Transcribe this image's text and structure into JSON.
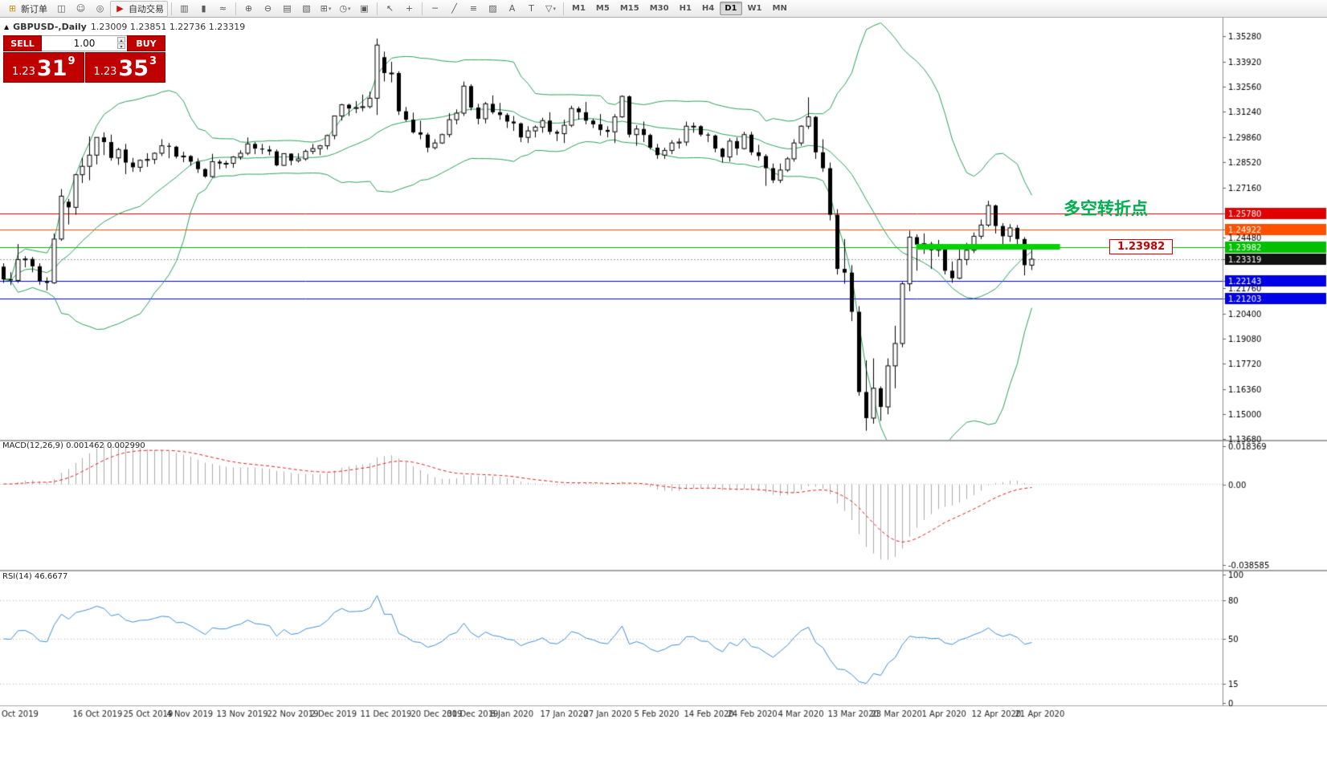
{
  "toolbar": {
    "new_order_label": "新订单",
    "autotrading_label": "自动交易",
    "timeframes": [
      "M1",
      "M5",
      "M15",
      "M30",
      "H1",
      "H4",
      "D1",
      "W1",
      "MN"
    ],
    "active_timeframe": "D1",
    "icons": {
      "new_order": "⊞",
      "terminal": "◫",
      "profiles": "☺",
      "data_window": "◎",
      "autotrade": "▶",
      "bars": "▥",
      "candles": "▮",
      "line_chart": "≈",
      "zoom_in": "⊕",
      "zoom_out": "⊖",
      "tile": "▤",
      "cascade": "▧",
      "new_chart": "⊞",
      "clock": "◷",
      "export": "▣",
      "cursor": "↖",
      "crosshair": "+",
      "hline": "─",
      "trendline": "╱",
      "fibo": "≡",
      "shapes": "▨",
      "text": "A",
      "label": "T",
      "arrows": "▽",
      "caret": "▾"
    }
  },
  "chart_header": {
    "collapse_icon": "▲",
    "symbol": "GBPUSD-,Daily",
    "ohlc": "1.23009 1.23851 1.22736 1.23319"
  },
  "trade_panel": {
    "sell_label": "SELL",
    "buy_label": "BUY",
    "volume": "1.00",
    "spinner_up": "▴",
    "spinner_down": "▾",
    "sell_price": {
      "prefix": "1.23",
      "big": "31",
      "sup": "9"
    },
    "buy_price": {
      "prefix": "1.23",
      "big": "35",
      "sup": "3"
    }
  },
  "annotations": {
    "turning_point": "多空转折点",
    "price_tag": "1.23982"
  },
  "indicators": {
    "macd_label": "MACD(12,26,9) 0.001462 0.002990",
    "rsi_label": "RSI(14) 46.6677"
  },
  "chart_data": {
    "type": "candlestick",
    "symbol": "GBPUSD",
    "timeframe": "Daily",
    "current_price": 1.23319,
    "bollinger": {
      "period": 20,
      "deviation": 2
    },
    "hlines": [
      [
        1.2578,
        "#dd0000"
      ],
      [
        1.24922,
        "#ff5000"
      ],
      [
        1.23982,
        "#00b000"
      ],
      [
        1.22143,
        "#0000f0"
      ],
      [
        1.21203,
        "#0000f0"
      ]
    ],
    "thick_line": {
      "price": 1.2398,
      "from": 127,
      "to": 147,
      "color": "#00d300",
      "width": 7
    },
    "price_axis": [
      [
        1.3528,
        "1.35280",
        null
      ],
      [
        1.3392,
        "1.33920",
        null
      ],
      [
        1.3256,
        "1.32560",
        null
      ],
      [
        1.3124,
        "1.31240",
        null
      ],
      [
        1.2986,
        "1.29860",
        null
      ],
      [
        1.2852,
        "1.28520",
        null
      ],
      [
        1.2716,
        "1.27160",
        null
      ],
      [
        1.2578,
        "1.25780",
        "#e10000"
      ],
      [
        1.24922,
        "1.24922",
        "#ff5000"
      ],
      [
        1.2448,
        "1.24480",
        null
      ],
      [
        1.23982,
        "1.23982",
        "#00c000"
      ],
      [
        1.23319,
        "1.23319",
        "#111111"
      ],
      [
        1.22143,
        "1.22143",
        "#0000e6"
      ],
      [
        1.2176,
        "1.21760",
        null
      ],
      [
        1.21203,
        "1.21203",
        "#0000e6"
      ],
      [
        1.204,
        "1.20400",
        null
      ],
      [
        1.1908,
        "1.19080",
        null
      ],
      [
        1.1772,
        "1.17720",
        null
      ],
      [
        1.1636,
        "1.16360",
        null
      ],
      [
        1.15,
        "1.15000",
        null
      ],
      [
        1.1368,
        "1.13680",
        null
      ]
    ],
    "macd": {
      "params": [
        12,
        26,
        9
      ],
      "values": [
        0.001462,
        0.00299
      ],
      "vmax": 0.018369,
      "vmin": -0.038585,
      "axis": [
        "0.018369",
        "0.00",
        "-0.038585"
      ]
    },
    "rsi": {
      "period": 14,
      "value": 46.6677,
      "levels": [
        80,
        50,
        15
      ],
      "axis": [
        [
          "100",
          100
        ],
        [
          "80",
          80
        ],
        [
          "50",
          50
        ],
        [
          "15",
          15
        ],
        [
          "0",
          0
        ]
      ]
    },
    "x_labels": [
      [
        0,
        "Oct 2019"
      ],
      [
        11,
        "16 Oct 2019"
      ],
      [
        18,
        "25 Oct 2019"
      ],
      [
        24,
        "4 Nov 2019"
      ],
      [
        31,
        "13 Nov 2019"
      ],
      [
        38,
        "22 Nov 2019"
      ],
      [
        44,
        "2 Dec 2019"
      ],
      [
        51,
        "11 Dec 2019"
      ],
      [
        58,
        "20 Dec 2019"
      ],
      [
        63,
        "30 Dec 2019"
      ],
      [
        69,
        "8 Jan 2020"
      ],
      [
        76,
        "17 Jan 2020"
      ],
      [
        82,
        "27 Jan 2020"
      ],
      [
        89,
        "5 Feb 2020"
      ],
      [
        96,
        "14 Feb 2020"
      ],
      [
        102,
        "24 Feb 2020"
      ],
      [
        109,
        "4 Mar 2020"
      ],
      [
        116,
        "13 Mar 2020"
      ],
      [
        122,
        "23 Mar 2020"
      ],
      [
        129,
        "1 Apr 2020"
      ],
      [
        136,
        "12 Apr 2020"
      ],
      [
        142,
        "21 Apr 2020"
      ]
    ],
    "candles": [
      [
        1.2292,
        1.231,
        1.2205,
        1.2224
      ],
      [
        1.2224,
        1.2262,
        1.2193,
        1.2218
      ],
      [
        1.2218,
        1.2413,
        1.2205,
        1.233
      ],
      [
        1.233,
        1.2348,
        1.2288,
        1.2333
      ],
      [
        1.2333,
        1.2344,
        1.2262,
        1.2294
      ],
      [
        1.2294,
        1.231,
        1.2195,
        1.2215
      ],
      [
        1.2215,
        1.2235,
        1.2165,
        1.2205
      ],
      [
        1.2205,
        1.247,
        1.22,
        1.244
      ],
      [
        1.244,
        1.2708,
        1.243,
        1.267
      ],
      [
        1.264,
        1.2655,
        1.2518,
        1.261
      ],
      [
        1.261,
        1.279,
        1.257,
        1.2785
      ],
      [
        1.2785,
        1.2877,
        1.274,
        1.283
      ],
      [
        1.283,
        1.299,
        1.2755,
        1.289
      ],
      [
        1.289,
        1.2985,
        1.284,
        1.2985
      ],
      [
        1.2985,
        1.3012,
        1.289,
        1.296
      ],
      [
        1.296,
        1.3,
        1.286,
        1.2875
      ],
      [
        1.2875,
        1.293,
        1.2838,
        1.292
      ],
      [
        1.292,
        1.295,
        1.2788,
        1.285
      ],
      [
        1.285,
        1.2875,
        1.28,
        1.2825
      ],
      [
        1.2825,
        1.2867,
        1.28,
        1.2862
      ],
      [
        1.2862,
        1.29,
        1.2827,
        1.2867
      ],
      [
        1.2867,
        1.2905,
        1.2842,
        1.29
      ],
      [
        1.29,
        1.2975,
        1.2885,
        1.294
      ],
      [
        1.294,
        1.2955,
        1.2873,
        1.2935
      ],
      [
        1.2935,
        1.294,
        1.2872,
        1.2882
      ],
      [
        1.2882,
        1.2908,
        1.2852,
        1.2885
      ],
      [
        1.2885,
        1.289,
        1.2833,
        1.2855
      ],
      [
        1.2855,
        1.2873,
        1.2794,
        1.2815
      ],
      [
        1.2815,
        1.282,
        1.2768,
        1.2775
      ],
      [
        1.2775,
        1.2897,
        1.2769,
        1.2855
      ],
      [
        1.2855,
        1.2865,
        1.2815,
        1.2845
      ],
      [
        1.2845,
        1.286,
        1.282,
        1.2846
      ],
      [
        1.2846,
        1.2885,
        1.2822,
        1.288
      ],
      [
        1.288,
        1.2916,
        1.2865,
        1.29
      ],
      [
        1.29,
        1.2985,
        1.289,
        1.295
      ],
      [
        1.295,
        1.296,
        1.2895,
        1.2925
      ],
      [
        1.2925,
        1.295,
        1.2895,
        1.292
      ],
      [
        1.292,
        1.294,
        1.289,
        1.291
      ],
      [
        1.291,
        1.292,
        1.283,
        1.2835
      ],
      [
        1.2835,
        1.29,
        1.2832,
        1.2898
      ],
      [
        1.2898,
        1.29,
        1.2835,
        1.286
      ],
      [
        1.286,
        1.29,
        1.285,
        1.287
      ],
      [
        1.287,
        1.292,
        1.286,
        1.291
      ],
      [
        1.291,
        1.295,
        1.2895,
        1.2925
      ],
      [
        1.2925,
        1.2945,
        1.289,
        1.294
      ],
      [
        1.294,
        1.3,
        1.292,
        1.2995
      ],
      [
        1.2995,
        1.3102,
        1.2975,
        1.31
      ],
      [
        1.31,
        1.3165,
        1.3075,
        1.316
      ],
      [
        1.316,
        1.3166,
        1.31,
        1.314
      ],
      [
        1.314,
        1.318,
        1.3115,
        1.3145
      ],
      [
        1.3145,
        1.3215,
        1.3125,
        1.315
      ],
      [
        1.315,
        1.323,
        1.314,
        1.3195
      ],
      [
        1.3195,
        1.3515,
        1.3105,
        1.348
      ],
      [
        1.3415,
        1.3445,
        1.3285,
        1.333
      ],
      [
        1.333,
        1.339,
        1.328,
        1.333
      ],
      [
        1.333,
        1.334,
        1.3105,
        1.3125
      ],
      [
        1.3125,
        1.3148,
        1.307,
        1.308
      ],
      [
        1.308,
        1.3118,
        1.3005,
        1.3012
      ],
      [
        1.3012,
        1.3075,
        1.2975,
        1.3
      ],
      [
        1.3,
        1.301,
        1.2905,
        1.293
      ],
      [
        1.293,
        1.2975,
        1.292,
        1.2955
      ],
      [
        1.2955,
        1.3005,
        1.295,
        1.3
      ],
      [
        1.3,
        1.3115,
        1.2985,
        1.308
      ],
      [
        1.308,
        1.3135,
        1.3055,
        1.3115
      ],
      [
        1.3115,
        1.3284,
        1.31,
        1.326
      ],
      [
        1.326,
        1.327,
        1.313,
        1.3145
      ],
      [
        1.3145,
        1.3165,
        1.3055,
        1.3085
      ],
      [
        1.3085,
        1.3175,
        1.306,
        1.3165
      ],
      [
        1.3165,
        1.321,
        1.311,
        1.312
      ],
      [
        1.312,
        1.317,
        1.308,
        1.3105
      ],
      [
        1.3105,
        1.3115,
        1.3035,
        1.307
      ],
      [
        1.307,
        1.31,
        1.302,
        1.306
      ],
      [
        1.306,
        1.3065,
        1.296,
        1.2985
      ],
      [
        1.2985,
        1.3045,
        1.2955,
        1.302
      ],
      [
        1.302,
        1.305,
        1.2985,
        1.304
      ],
      [
        1.304,
        1.309,
        1.301,
        1.3075
      ],
      [
        1.3075,
        1.312,
        1.3,
        1.3015
      ],
      [
        1.3015,
        1.3025,
        1.2965,
        1.3005
      ],
      [
        1.3005,
        1.308,
        1.2955,
        1.305
      ],
      [
        1.305,
        1.3155,
        1.304,
        1.314
      ],
      [
        1.314,
        1.315,
        1.308,
        1.312
      ],
      [
        1.312,
        1.3175,
        1.3055,
        1.3075
      ],
      [
        1.3075,
        1.3085,
        1.3035,
        1.3055
      ],
      [
        1.3055,
        1.311,
        1.2995,
        1.3025
      ],
      [
        1.3025,
        1.3045,
        1.2985,
        1.3015
      ],
      [
        1.3015,
        1.311,
        1.2955,
        1.3095
      ],
      [
        1.3095,
        1.321,
        1.309,
        1.3205
      ],
      [
        1.3205,
        1.321,
        1.2985,
        1.3
      ],
      [
        1.3,
        1.305,
        1.294,
        1.303
      ],
      [
        1.303,
        1.307,
        1.296,
        1.2998
      ],
      [
        1.2998,
        1.3005,
        1.292,
        1.293
      ],
      [
        1.293,
        1.295,
        1.287,
        1.289
      ],
      [
        1.289,
        1.293,
        1.287,
        1.2915
      ],
      [
        1.2915,
        1.297,
        1.2895,
        1.2955
      ],
      [
        1.2955,
        1.298,
        1.2925,
        1.296
      ],
      [
        1.296,
        1.307,
        1.294,
        1.3045
      ],
      [
        1.3045,
        1.3065,
        1.301,
        1.3045
      ],
      [
        1.3045,
        1.305,
        1.299,
        1.3
      ],
      [
        1.3,
        1.301,
        1.296,
        1.2995
      ],
      [
        1.2995,
        1.3,
        1.2905,
        1.2925
      ],
      [
        1.2925,
        1.293,
        1.285,
        1.288
      ],
      [
        1.288,
        1.298,
        1.2855,
        1.2965
      ],
      [
        1.2965,
        1.2985,
        1.289,
        1.2925
      ],
      [
        1.2925,
        1.3015,
        1.292,
        1.3
      ],
      [
        1.3,
        1.3015,
        1.289,
        1.2905
      ],
      [
        1.2905,
        1.2945,
        1.286,
        1.2885
      ],
      [
        1.2885,
        1.2895,
        1.2725,
        1.282
      ],
      [
        1.282,
        1.2845,
        1.274,
        1.2755
      ],
      [
        1.2755,
        1.2845,
        1.274,
        1.281
      ],
      [
        1.281,
        1.288,
        1.28,
        1.287
      ],
      [
        1.287,
        1.2975,
        1.2855,
        1.2955
      ],
      [
        1.2955,
        1.305,
        1.294,
        1.3045
      ],
      [
        1.3045,
        1.32,
        1.303,
        1.3095
      ],
      [
        1.3095,
        1.31,
        1.287,
        1.2905
      ],
      [
        1.2905,
        1.2975,
        1.28,
        1.282
      ],
      [
        1.282,
        1.285,
        1.254,
        1.257
      ],
      [
        1.257,
        1.26,
        1.225,
        1.228
      ],
      [
        1.228,
        1.244,
        1.22,
        1.226
      ],
      [
        1.226,
        1.23,
        1.2,
        1.205
      ],
      [
        1.205,
        1.208,
        1.16,
        1.162
      ],
      [
        1.162,
        1.179,
        1.1412,
        1.148
      ],
      [
        1.148,
        1.18,
        1.145,
        1.164
      ],
      [
        1.164,
        1.165,
        1.1465,
        1.154
      ],
      [
        1.154,
        1.18,
        1.15,
        1.176
      ],
      [
        1.176,
        1.1975,
        1.164,
        1.188
      ],
      [
        1.188,
        1.221,
        1.186,
        1.22
      ],
      [
        1.22,
        1.2485,
        1.216,
        1.245
      ],
      [
        1.245,
        1.2465,
        1.227,
        1.241
      ],
      [
        1.241,
        1.247,
        1.236,
        1.2415
      ],
      [
        1.2415,
        1.2425,
        1.228,
        1.238
      ],
      [
        1.238,
        1.2435,
        1.2345,
        1.239
      ],
      [
        1.239,
        1.2395,
        1.225,
        1.227
      ],
      [
        1.227,
        1.232,
        1.2205,
        1.223
      ],
      [
        1.223,
        1.2385,
        1.2225,
        1.233
      ],
      [
        1.233,
        1.242,
        1.23,
        1.238
      ],
      [
        1.238,
        1.2475,
        1.2365,
        1.2455
      ],
      [
        1.2455,
        1.2545,
        1.244,
        1.2515
      ],
      [
        1.2515,
        1.2645,
        1.2505,
        1.262
      ],
      [
        1.262,
        1.2625,
        1.247,
        1.251
      ],
      [
        1.251,
        1.2525,
        1.2405,
        1.2455
      ],
      [
        1.2455,
        1.252,
        1.2425,
        1.25
      ],
      [
        1.25,
        1.2515,
        1.2405,
        1.244
      ],
      [
        1.244,
        1.245,
        1.2245,
        1.23
      ],
      [
        1.23,
        1.2385,
        1.2274,
        1.2332
      ]
    ]
  }
}
